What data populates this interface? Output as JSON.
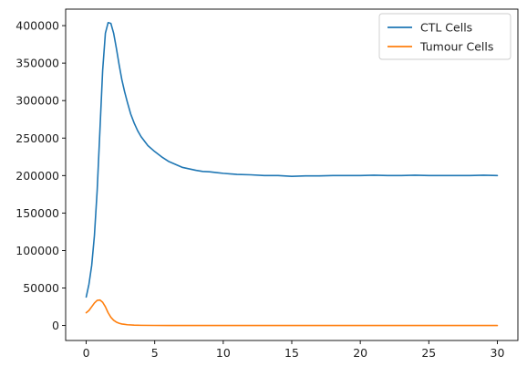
{
  "chart_data": {
    "type": "line",
    "title": "",
    "xlabel": "",
    "ylabel": "",
    "xlim": [
      -1.5,
      31.5
    ],
    "ylim": [
      -20000,
      422000
    ],
    "xticks": [
      0,
      5,
      10,
      15,
      20,
      25,
      30
    ],
    "yticks": [
      0,
      50000,
      100000,
      150000,
      200000,
      250000,
      300000,
      350000,
      400000
    ],
    "grid": false,
    "legend_position": "top-right",
    "series": [
      {
        "name": "CTL Cells",
        "color": "#1f77b4",
        "x": [
          0,
          0.2,
          0.4,
          0.6,
          0.8,
          1.0,
          1.2,
          1.4,
          1.6,
          1.8,
          2.0,
          2.2,
          2.4,
          2.6,
          2.8,
          3.0,
          3.25,
          3.5,
          3.75,
          4.0,
          4.5,
          5.0,
          5.5,
          6.0,
          6.5,
          7.0,
          7.5,
          8.0,
          8.5,
          9.0,
          9.5,
          10.0,
          11.0,
          12.0,
          13.0,
          14.0,
          15.0,
          16.0,
          17.0,
          18.0,
          19.0,
          20.0,
          21.0,
          22.0,
          23.0,
          24.0,
          25.0,
          26.0,
          27.0,
          28.0,
          29.0,
          30.0
        ],
        "values": [
          38000,
          55000,
          80000,
          120000,
          180000,
          260000,
          340000,
          390000,
          404000,
          403000,
          390000,
          370000,
          348000,
          328000,
          312000,
          298000,
          282000,
          270000,
          260000,
          252000,
          240000,
          232000,
          225000,
          219000,
          215000,
          211000,
          209000,
          207000,
          205500,
          205000,
          204000,
          203000,
          201500,
          201000,
          200000,
          200000,
          199000,
          199500,
          199500,
          200000,
          200000,
          200000,
          200500,
          200000,
          200000,
          200500,
          200000,
          200000,
          200000,
          200000,
          200500,
          200000
        ]
      },
      {
        "name": "Tumour Cells",
        "color": "#ff7f0e",
        "x": [
          0,
          0.2,
          0.4,
          0.6,
          0.8,
          1.0,
          1.2,
          1.4,
          1.6,
          1.8,
          2.0,
          2.2,
          2.4,
          2.6,
          2.8,
          3.0,
          3.5,
          4.0,
          5.0,
          6.0,
          8.0,
          10.0,
          15.0,
          20.0,
          25.0,
          30.0
        ],
        "values": [
          17000,
          20000,
          25000,
          30000,
          33500,
          34000,
          31000,
          25000,
          17000,
          11000,
          7000,
          4500,
          3000,
          2000,
          1500,
          1000,
          500,
          250,
          100,
          50,
          20,
          10,
          0,
          0,
          0,
          0
        ]
      }
    ]
  }
}
